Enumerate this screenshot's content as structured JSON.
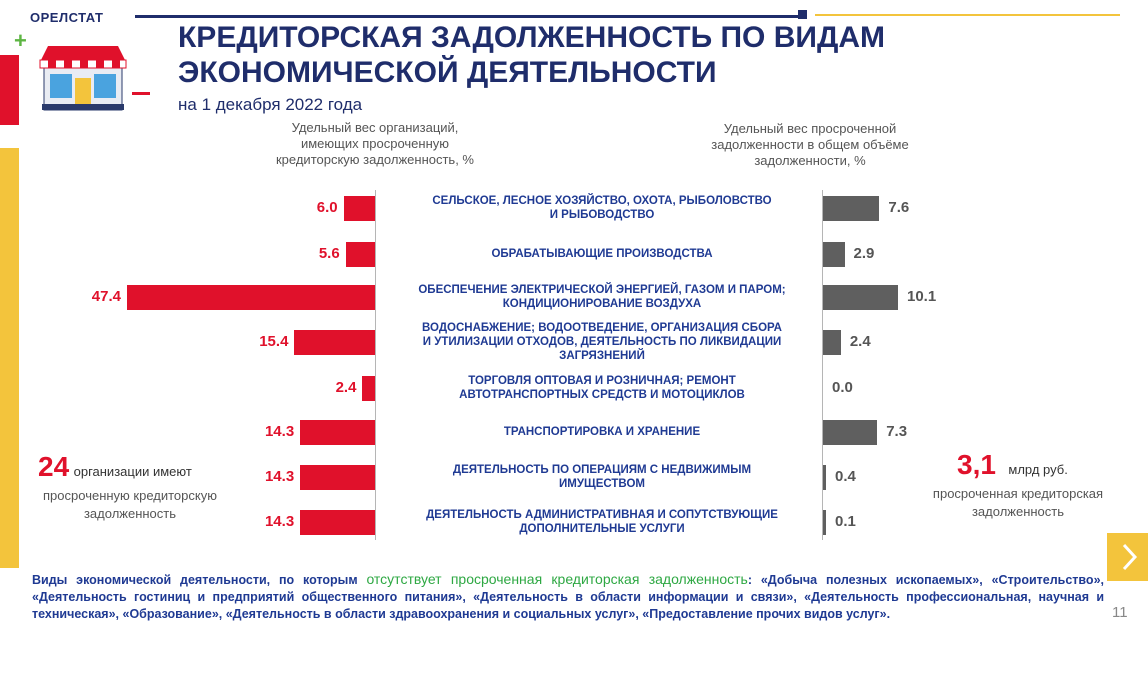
{
  "header": {
    "brand": "ОРЕЛСТАТ",
    "title_line1": "КРЕДИТОРСКАЯ ЗАДОЛЖЕННОСТЬ ПО ВИДАМ",
    "title_line2": "ЭКОНОМИЧЕСКОЙ ДЕЯТЕЛЬНОСТИ",
    "subtitle": "на 1 декабря 2022 года"
  },
  "colors": {
    "navy": "#1f2d6b",
    "red": "#e0112b",
    "gray": "#5f5f5f",
    "yellow": "#f3c43c",
    "green": "#2ea843"
  },
  "chart_data": {
    "type": "bar",
    "orientation": "horizontal-butterfly",
    "categories": [
      [
        "СЕЛЬСКОЕ, ЛЕСНОЕ ХОЗЯЙСТВО, ОХОТА, РЫБОЛОВСТВО",
        "И РЫБОВОДСТВО"
      ],
      [
        "ОБРАБАТЫВАЮЩИЕ ПРОИЗВОДСТВА"
      ],
      [
        "ОБЕСПЕЧЕНИЕ ЭЛЕКТРИЧЕСКОЙ ЭНЕРГИЕЙ, ГАЗОМ И ПАРОМ;",
        "КОНДИЦИОНИРОВАНИЕ ВОЗДУХА"
      ],
      [
        "ВОДОСНАБЖЕНИЕ; ВОДООТВЕДЕНИЕ, ОРГАНИЗАЦИЯ СБОРА",
        "И УТИЛИЗАЦИИ ОТХОДОВ, ДЕЯТЕЛЬНОСТЬ ПО ЛИКВИДАЦИИ",
        "ЗАГРЯЗНЕНИЙ"
      ],
      [
        "ТОРГОВЛЯ ОПТОВАЯ И РОЗНИЧНАЯ; РЕМОНТ",
        "АВТОТРАНСПОРТНЫХ СРЕДСТВ И МОТОЦИКЛОВ"
      ],
      [
        "ТРАНСПОРТИРОВКА И ХРАНЕНИЕ"
      ],
      [
        "ДЕЯТЕЛЬНОСТЬ ПО ОПЕРАЦИЯМ С НЕДВИЖИМЫМ",
        "ИМУЩЕСТВОМ"
      ],
      [
        "ДЕЯТЕЛЬНОСТЬ АДМИНИСТРАТИВНАЯ И СОПУТСТВУЮЩИЕ",
        "ДОПОЛНИТЕЛЬНЫЕ УСЛУГИ"
      ]
    ],
    "series": [
      {
        "name": "Удельный вес организаций, имеющих просроченную кредиторскую задолженность, %",
        "name_lines": [
          "Удельный вес организаций,",
          "имеющих просроченную",
          "кредиторскую задолженность, %"
        ],
        "values": [
          6.0,
          5.6,
          47.4,
          15.4,
          2.4,
          14.3,
          14.3,
          14.3
        ],
        "labels": [
          "6.0",
          "5.6",
          "47.4",
          "15.4",
          "2.4",
          "14.3",
          "14.3",
          "14.3"
        ]
      },
      {
        "name": "Удельный вес просроченной задолженности в общем объёме задолженности, %",
        "name_lines": [
          "Удельный вес просроченной",
          "задолженности в общем объёме",
          "задолженности, %"
        ],
        "values": [
          7.6,
          2.9,
          10.1,
          2.4,
          0.0,
          7.3,
          0.4,
          0.1
        ],
        "labels": [
          "7.6",
          "2.9",
          "10.1",
          "2.4",
          "0.0",
          "7.3",
          "0.4",
          "0.1"
        ]
      }
    ],
    "xlim_left": [
      0,
      47.4
    ],
    "xlim_right": [
      0,
      10.1
    ]
  },
  "left_note": {
    "number": "24",
    "text1": "организации имеют",
    "text2": "просроченную кредиторскую",
    "text3": "задолженность"
  },
  "right_note": {
    "number": "3,1",
    "unit": "млрд руб.",
    "text1": "просроченная кредиторская",
    "text2": "задолженность"
  },
  "footer": {
    "part1": "Виды экономической деятельности, по которым ",
    "highlight": "отсутствует просроченная кредиторская задолженность",
    "part2": ": «Добыча полезных ископаемых», «Строительство», «Деятельность гостиниц и предприятий общественного питания», «Деятельность в области информации и связи», «Деятельность профессиональная, научная и техническая», «Образование», «Деятельность в области здравоохранения и социальных услуг», «Предоставление прочих видов услуг»."
  },
  "page_number": "11"
}
